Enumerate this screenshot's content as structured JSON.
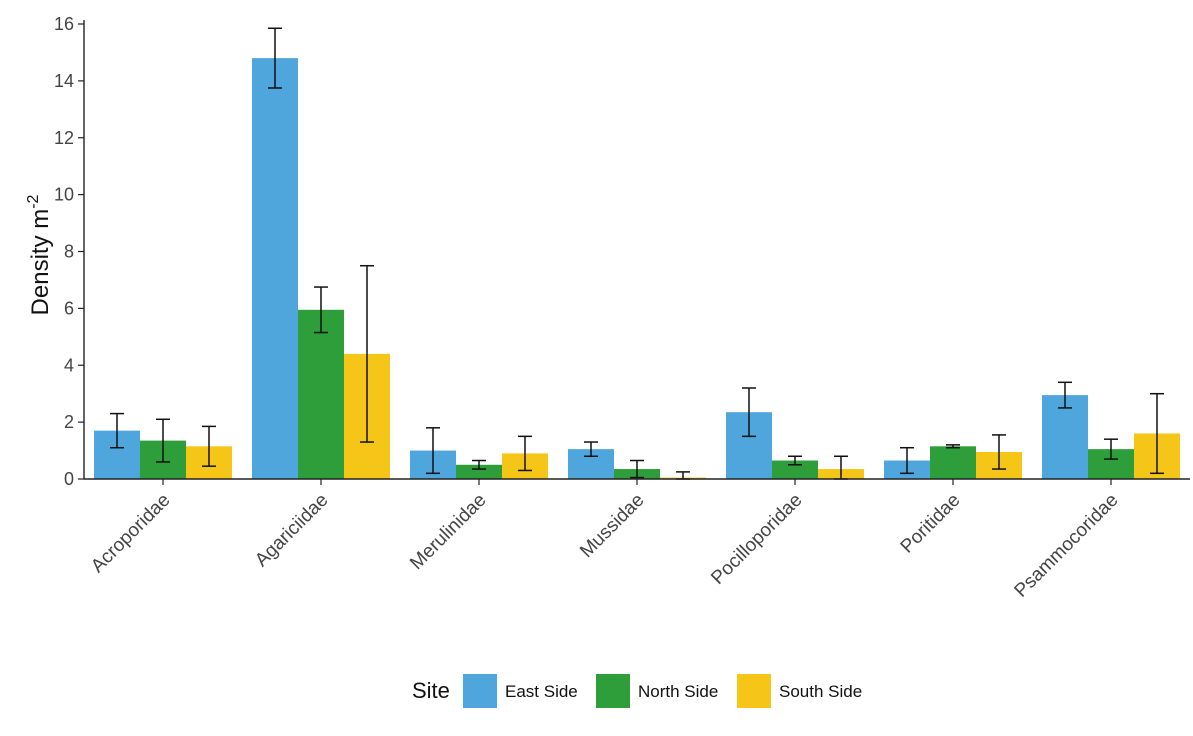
{
  "chart_data": {
    "type": "bar",
    "title": "",
    "xlabel": "",
    "ylabel": "Density m",
    "ylabel_superscript": "-2",
    "ylim": [
      0,
      16
    ],
    "yticks": [
      0,
      2,
      4,
      6,
      8,
      10,
      12,
      14,
      16
    ],
    "grid": false,
    "legend_position": "bottom",
    "legend_title": "Site",
    "categories": [
      "Acroporidae",
      "Agariciidae",
      "Merulinidae",
      "Mussidae",
      "Pocilloporidae",
      "Poritidae",
      "Psammocoridae"
    ],
    "series": [
      {
        "name": "East Side",
        "color": "#4ea6dc",
        "values": [
          1.7,
          14.8,
          1.0,
          1.05,
          2.35,
          0.65,
          2.95
        ],
        "error": [
          0.6,
          1.05,
          0.8,
          0.25,
          0.85,
          0.45,
          0.45
        ]
      },
      {
        "name": "North Side",
        "color": "#2e9e3a",
        "values": [
          1.35,
          5.95,
          0.5,
          0.35,
          0.65,
          1.15,
          1.05
        ],
        "error": [
          0.75,
          0.8,
          0.15,
          0.3,
          0.15,
          0.05,
          0.35
        ]
      },
      {
        "name": "South Side",
        "color": "#f5c518",
        "values": [
          1.15,
          4.4,
          0.9,
          0.05,
          0.35,
          0.95,
          1.6
        ],
        "error": [
          0.7,
          3.1,
          0.6,
          0.2,
          0.45,
          0.6,
          1.4
        ]
      }
    ]
  }
}
